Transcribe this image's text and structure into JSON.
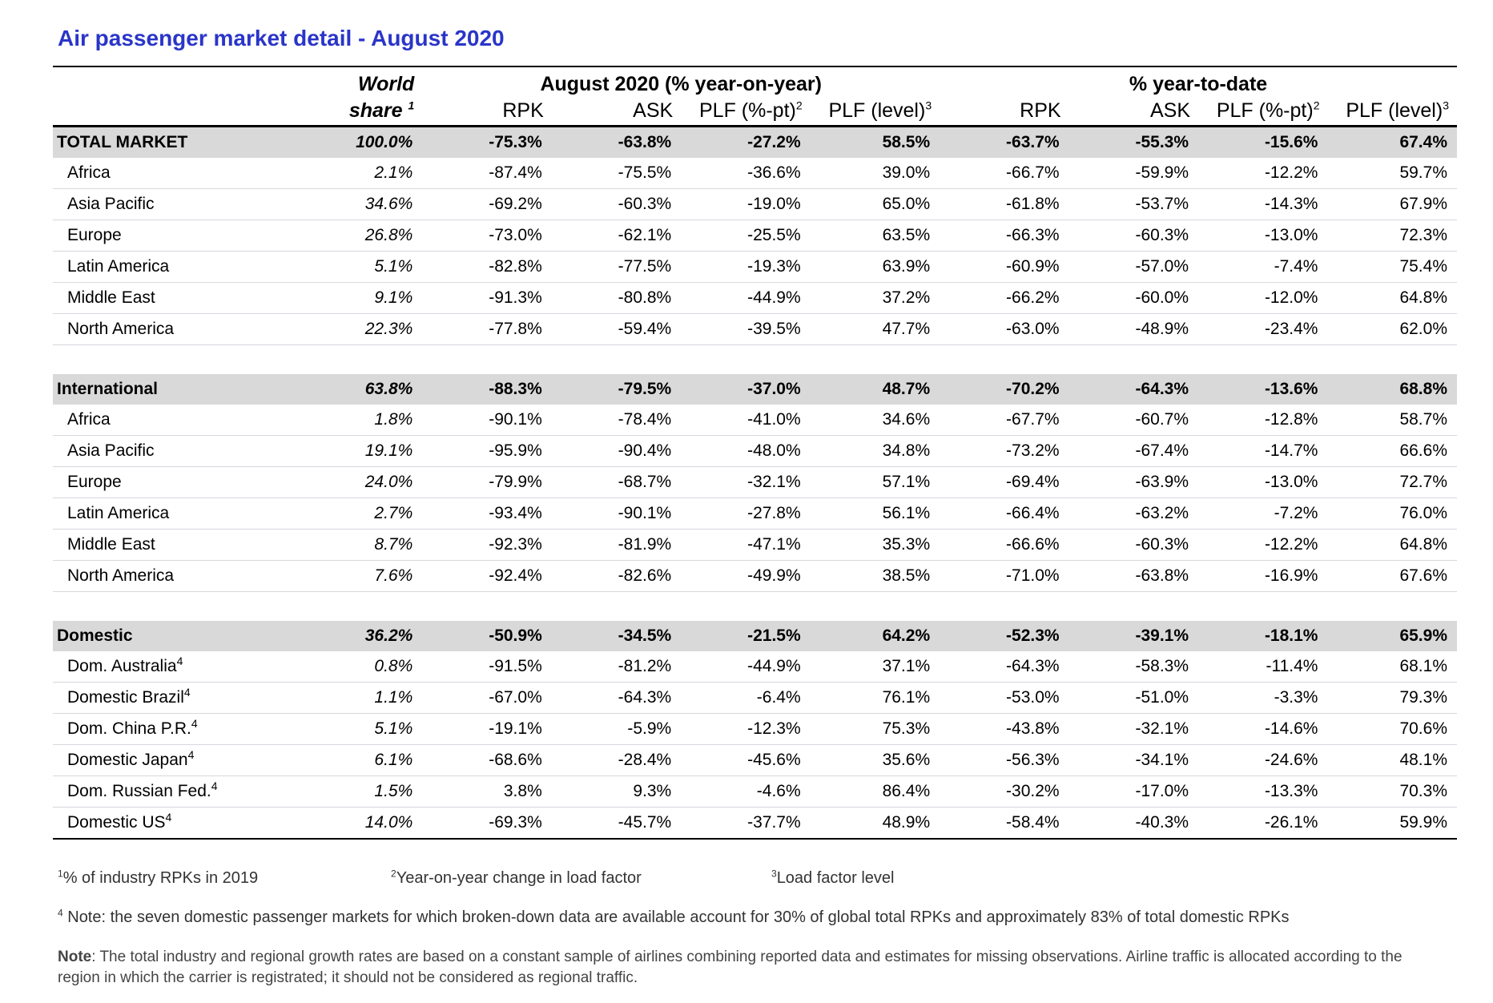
{
  "title": "Air passenger market detail - August 2020",
  "header": {
    "world": "World",
    "share": "share",
    "share_sup": "1",
    "group_month": "August 2020 (% year-on-year)",
    "group_ytd": "% year-to-date",
    "cols": [
      {
        "label": "RPK",
        "sup": ""
      },
      {
        "label": "ASK",
        "sup": ""
      },
      {
        "label": "PLF (%-pt)",
        "sup": "2"
      },
      {
        "label": "PLF (level)",
        "sup": "3"
      },
      {
        "label": "RPK",
        "sup": ""
      },
      {
        "label": "ASK",
        "sup": ""
      },
      {
        "label": "PLF (%-pt)",
        "sup": "2"
      },
      {
        "label": "PLF (level)",
        "sup": "3"
      }
    ]
  },
  "rows": [
    {
      "type": "total",
      "label": "TOTAL MARKET",
      "sup": "",
      "share": "100.0%",
      "values": [
        "-75.3%",
        "-63.8%",
        "-27.2%",
        "58.5%",
        "-63.7%",
        "-55.3%",
        "-15.6%",
        "67.4%"
      ]
    },
    {
      "type": "row",
      "label": "Africa",
      "sup": "",
      "share": "2.1%",
      "values": [
        "-87.4%",
        "-75.5%",
        "-36.6%",
        "39.0%",
        "-66.7%",
        "-59.9%",
        "-12.2%",
        "59.7%"
      ]
    },
    {
      "type": "row",
      "label": "Asia Pacific",
      "sup": "",
      "share": "34.6%",
      "values": [
        "-69.2%",
        "-60.3%",
        "-19.0%",
        "65.0%",
        "-61.8%",
        "-53.7%",
        "-14.3%",
        "67.9%"
      ]
    },
    {
      "type": "row",
      "label": "Europe",
      "sup": "",
      "share": "26.8%",
      "values": [
        "-73.0%",
        "-62.1%",
        "-25.5%",
        "63.5%",
        "-66.3%",
        "-60.3%",
        "-13.0%",
        "72.3%"
      ]
    },
    {
      "type": "row",
      "label": "Latin America",
      "sup": "",
      "share": "5.1%",
      "values": [
        "-82.8%",
        "-77.5%",
        "-19.3%",
        "63.9%",
        "-60.9%",
        "-57.0%",
        "-7.4%",
        "75.4%"
      ]
    },
    {
      "type": "row",
      "label": "Middle East",
      "sup": "",
      "share": "9.1%",
      "values": [
        "-91.3%",
        "-80.8%",
        "-44.9%",
        "37.2%",
        "-66.2%",
        "-60.0%",
        "-12.0%",
        "64.8%"
      ]
    },
    {
      "type": "row",
      "label": "North America",
      "sup": "",
      "share": "22.3%",
      "values": [
        "-77.8%",
        "-59.4%",
        "-39.5%",
        "47.7%",
        "-63.0%",
        "-48.9%",
        "-23.4%",
        "62.0%"
      ]
    },
    {
      "type": "spacer"
    },
    {
      "type": "total",
      "label": "International",
      "sup": "",
      "share": "63.8%",
      "values": [
        "-88.3%",
        "-79.5%",
        "-37.0%",
        "48.7%",
        "-70.2%",
        "-64.3%",
        "-13.6%",
        "68.8%"
      ]
    },
    {
      "type": "row",
      "label": "Africa",
      "sup": "",
      "share": "1.8%",
      "values": [
        "-90.1%",
        "-78.4%",
        "-41.0%",
        "34.6%",
        "-67.7%",
        "-60.7%",
        "-12.8%",
        "58.7%"
      ]
    },
    {
      "type": "row",
      "label": "Asia Pacific",
      "sup": "",
      "share": "19.1%",
      "values": [
        "-95.9%",
        "-90.4%",
        "-48.0%",
        "34.8%",
        "-73.2%",
        "-67.4%",
        "-14.7%",
        "66.6%"
      ]
    },
    {
      "type": "row",
      "label": "Europe",
      "sup": "",
      "share": "24.0%",
      "values": [
        "-79.9%",
        "-68.7%",
        "-32.1%",
        "57.1%",
        "-69.4%",
        "-63.9%",
        "-13.0%",
        "72.7%"
      ]
    },
    {
      "type": "row",
      "label": "Latin America",
      "sup": "",
      "share": "2.7%",
      "values": [
        "-93.4%",
        "-90.1%",
        "-27.8%",
        "56.1%",
        "-66.4%",
        "-63.2%",
        "-7.2%",
        "76.0%"
      ]
    },
    {
      "type": "row",
      "label": "Middle East",
      "sup": "",
      "share": "8.7%",
      "values": [
        "-92.3%",
        "-81.9%",
        "-47.1%",
        "35.3%",
        "-66.6%",
        "-60.3%",
        "-12.2%",
        "64.8%"
      ]
    },
    {
      "type": "row",
      "label": "North America",
      "sup": "",
      "share": "7.6%",
      "values": [
        "-92.4%",
        "-82.6%",
        "-49.9%",
        "38.5%",
        "-71.0%",
        "-63.8%",
        "-16.9%",
        "67.6%"
      ]
    },
    {
      "type": "spacer"
    },
    {
      "type": "total",
      "label": "Domestic",
      "sup": "",
      "share": "36.2%",
      "values": [
        "-50.9%",
        "-34.5%",
        "-21.5%",
        "64.2%",
        "-52.3%",
        "-39.1%",
        "-18.1%",
        "65.9%"
      ]
    },
    {
      "type": "row",
      "label": "Dom. Australia",
      "sup": "4",
      "share": "0.8%",
      "values": [
        "-91.5%",
        "-81.2%",
        "-44.9%",
        "37.1%",
        "-64.3%",
        "-58.3%",
        "-11.4%",
        "68.1%"
      ]
    },
    {
      "type": "row",
      "label": "Domestic Brazil",
      "sup": "4",
      "share": "1.1%",
      "values": [
        "-67.0%",
        "-64.3%",
        "-6.4%",
        "76.1%",
        "-53.0%",
        "-51.0%",
        "-3.3%",
        "79.3%"
      ]
    },
    {
      "type": "row",
      "label": "Dom. China P.R.",
      "sup": "4",
      "share": "5.1%",
      "values": [
        "-19.1%",
        "-5.9%",
        "-12.3%",
        "75.3%",
        "-43.8%",
        "-32.1%",
        "-14.6%",
        "70.6%"
      ]
    },
    {
      "type": "row",
      "label": "Domestic Japan",
      "sup": "4",
      "share": "6.1%",
      "values": [
        "-68.6%",
        "-28.4%",
        "-45.6%",
        "35.6%",
        "-56.3%",
        "-34.1%",
        "-24.6%",
        "48.1%"
      ]
    },
    {
      "type": "row",
      "label": "Dom. Russian Fed.",
      "sup": "4",
      "share": "1.5%",
      "values": [
        "3.8%",
        "9.3%",
        "-4.6%",
        "86.4%",
        "-30.2%",
        "-17.0%",
        "-13.3%",
        "70.3%"
      ]
    },
    {
      "type": "row",
      "label": "Domestic US",
      "sup": "4",
      "share": "14.0%",
      "values": [
        "-69.3%",
        "-45.7%",
        "-37.7%",
        "48.9%",
        "-58.4%",
        "-40.3%",
        "-26.1%",
        "59.9%"
      ],
      "last": true
    }
  ],
  "footnotes": {
    "fn1_sup": "1",
    "fn1": "% of industry RPKs in 2019",
    "fn2_sup": "2",
    "fn2": "Year-on-year change in load factor",
    "fn3_sup": "3",
    "fn3": "Load factor level",
    "fn4_sup": "4",
    "fn4": " Note: the seven domestic passenger markets for which broken-down data are available account for 30% of global total RPKs and approximately 83% of total domestic RPKs",
    "note_label": "Note",
    "note": ": The total industry and regional growth rates are based on a constant sample of airlines combining reported data and estimates for missing observations. Airline traffic is allocated according to the region in which the carrier is registrated; it should not be considered as regional traffic."
  },
  "colors": {
    "title": "#2a35c9",
    "total_bg": "#d9d9d9"
  }
}
